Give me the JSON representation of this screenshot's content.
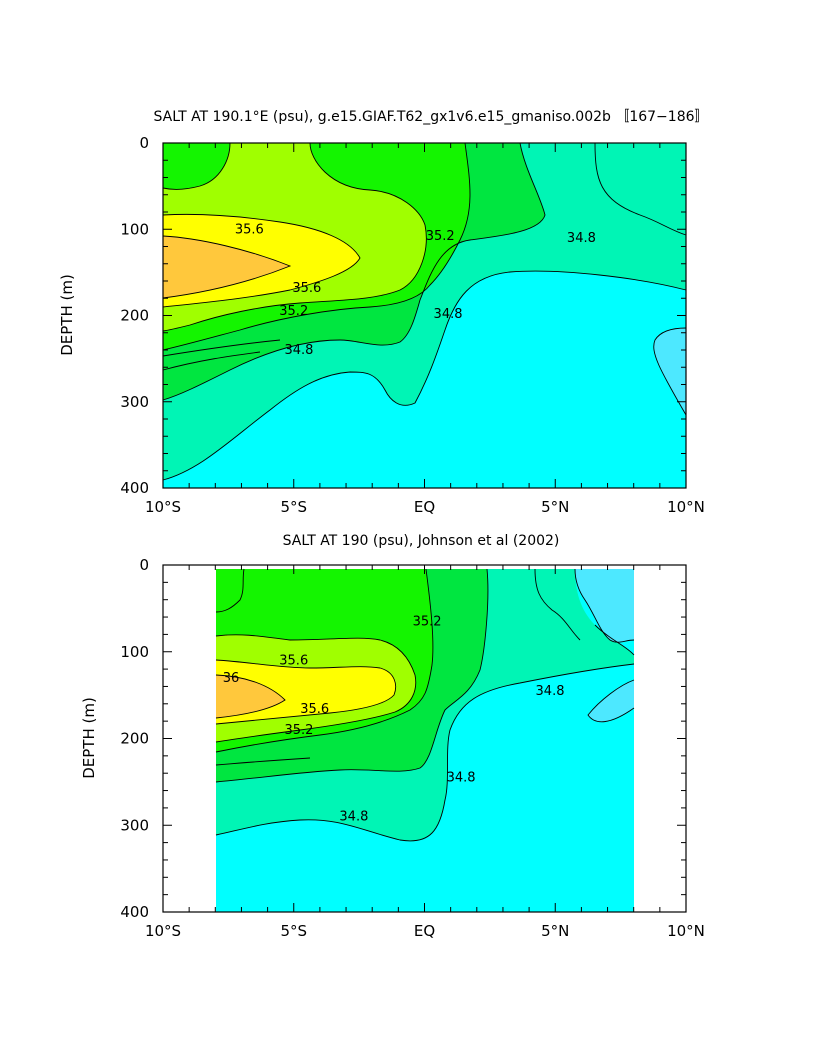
{
  "chart_data": [
    {
      "type": "contour",
      "title": "SALT AT 190.1°E (psu), g.e15.GIAF.T62_gx1v6.e15_gmaniso.002b 〚167−186〛",
      "ylabel": "DEPTH (m)",
      "xlabel": "",
      "xlim": [
        -10,
        10
      ],
      "ylim": [
        400,
        0
      ],
      "x_ticks": [
        -10,
        -5,
        0,
        5,
        10
      ],
      "x_tick_labels": [
        "10°S",
        "5°S",
        "EQ",
        "5°N",
        "10°N"
      ],
      "y_ticks": [
        0,
        100,
        200,
        300,
        400
      ],
      "y_tick_labels": [
        "0",
        "100",
        "200",
        "300",
        "400"
      ],
      "data_extent": [
        -10,
        10
      ],
      "contour_labels": [
        {
          "text": "35.6",
          "x": -6.7,
          "y": 100
        },
        {
          "text": "35.2",
          "x": 0.6,
          "y": 108
        },
        {
          "text": "34.8",
          "x": 6.0,
          "y": 110
        },
        {
          "text": "35.6",
          "x": -4.5,
          "y": 168
        },
        {
          "text": "35.2",
          "x": -5.0,
          "y": 195
        },
        {
          "text": "34.8",
          "x": 0.9,
          "y": 198
        },
        {
          "text": "34.8",
          "x": -4.8,
          "y": 240
        }
      ]
    },
    {
      "type": "contour",
      "title": "SALT AT 190 (psu), Johnson et al (2002)",
      "ylabel": "DEPTH (m)",
      "xlabel": "",
      "xlim": [
        -10,
        10
      ],
      "ylim": [
        400,
        0
      ],
      "x_ticks": [
        -10,
        -5,
        0,
        5,
        10
      ],
      "x_tick_labels": [
        "10°S",
        "5°S",
        "EQ",
        "5°N",
        "10°N"
      ],
      "y_ticks": [
        0,
        100,
        200,
        300,
        400
      ],
      "y_tick_labels": [
        "0",
        "100",
        "200",
        "300",
        "400"
      ],
      "data_extent": [
        -8,
        8
      ],
      "contour_labels": [
        {
          "text": "35.2",
          "x": 0.1,
          "y": 65
        },
        {
          "text": "35.6",
          "x": -5.0,
          "y": 110
        },
        {
          "text": "36",
          "x": -7.4,
          "y": 130
        },
        {
          "text": "35.6",
          "x": -4.2,
          "y": 166
        },
        {
          "text": "35.2",
          "x": -4.8,
          "y": 190
        },
        {
          "text": "34.8",
          "x": 1.4,
          "y": 245
        },
        {
          "text": "34.8",
          "x": 4.8,
          "y": 145
        },
        {
          "text": "34.8",
          "x": -2.7,
          "y": 290
        }
      ]
    }
  ],
  "colors": {
    "below_34_6": "#4de8ff",
    "s34_6_34_8": "#00ffff",
    "s34_8_35_0": "#00f5b5",
    "s35_0_35_2": "#00e640",
    "s35_2_35_4": "#14f500",
    "s35_4_35_6": "#a0ff00",
    "s35_6_36_0": "#ffff00",
    "above_36_0": "#ffc83c"
  }
}
